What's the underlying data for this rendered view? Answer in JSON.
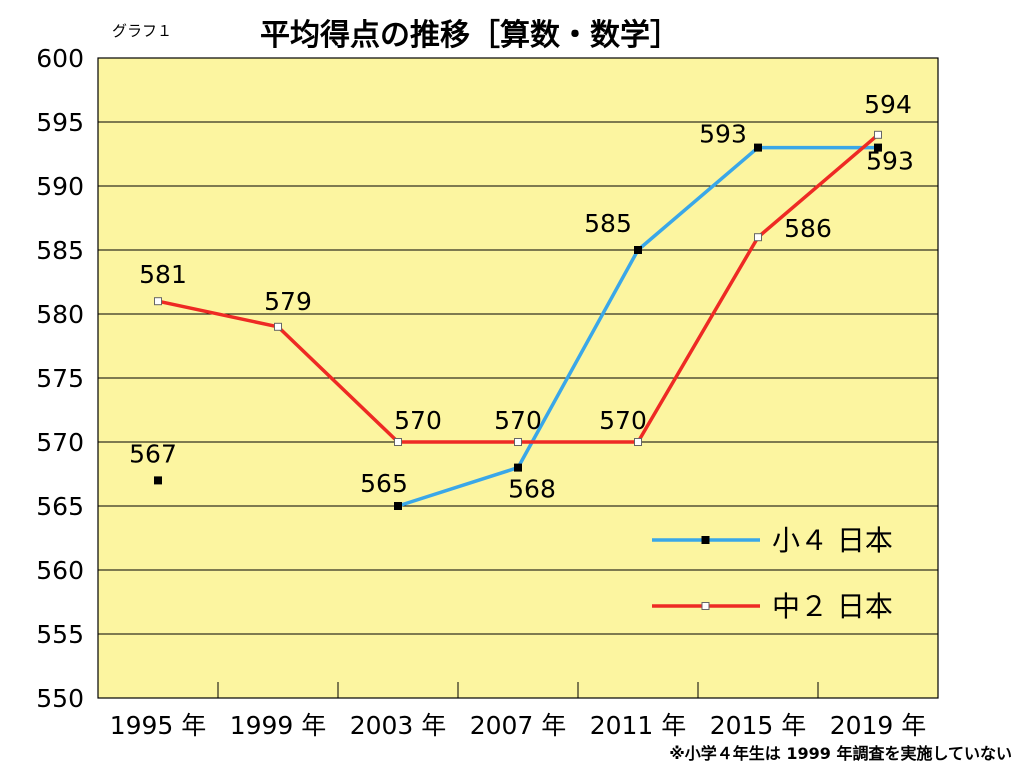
{
  "header": {
    "figure_label": "グラフ１",
    "title": "平均得点の推移［算数・数学］"
  },
  "footnote": "※小学４年生は 1999 年調査を実施していない",
  "chart_data": {
    "type": "line",
    "categories": [
      "1995 年",
      "1999 年",
      "2003 年",
      "2007 年",
      "2011 年",
      "2015 年",
      "2019 年"
    ],
    "ylim": [
      550,
      600
    ],
    "yticks": [
      550,
      555,
      560,
      565,
      570,
      575,
      580,
      585,
      590,
      595,
      600
    ],
    "grid": true,
    "legend_position": "bottom-right",
    "series": [
      {
        "name": "小４ 日本",
        "color": "#3aa7e8",
        "marker": "#000000",
        "values": [
          567,
          null,
          565,
          568,
          585,
          593,
          593
        ],
        "connect_from": 2
      },
      {
        "name": "中２ 日本",
        "color": "#ee2a24",
        "marker": "#ffffff",
        "values": [
          581,
          579,
          570,
          570,
          570,
          586,
          594
        ],
        "connect_from": 0
      }
    ],
    "background": "#fcf5a0"
  }
}
